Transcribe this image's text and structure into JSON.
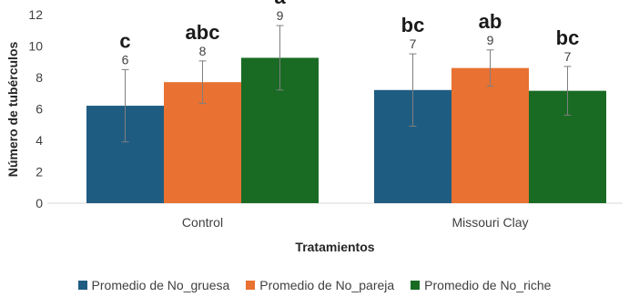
{
  "chart_data": {
    "type": "bar",
    "xlabel": "Tratamientos",
    "ylabel": "Número de tubérculos",
    "ylim": [
      0,
      12
    ],
    "yticks": [
      0,
      2,
      4,
      6,
      8,
      10,
      12
    ],
    "categories": [
      "Control",
      "Missouri Clay"
    ],
    "series": [
      {
        "name": "Promedio de No_gruesa",
        "color": "#1f5c82",
        "values": [
          6.2,
          7.2
        ],
        "error": [
          2.3,
          2.3
        ],
        "labels": [
          "6",
          "7"
        ],
        "letters": [
          "c",
          "bc"
        ]
      },
      {
        "name": "Promedio de No_pareja",
        "color": "#e97132",
        "values": [
          7.7,
          8.6
        ],
        "error": [
          1.35,
          1.15
        ],
        "labels": [
          "8",
          "9"
        ],
        "letters": [
          "abc",
          "ab"
        ]
      },
      {
        "name": "Promedio de No_riche",
        "color": "#196b24",
        "values": [
          9.25,
          7.15
        ],
        "error": [
          2.05,
          1.55
        ],
        "labels": [
          "9",
          "7"
        ],
        "letters": [
          "a",
          "bc"
        ]
      }
    ],
    "gridlines": false,
    "legend_position": "bottom"
  }
}
